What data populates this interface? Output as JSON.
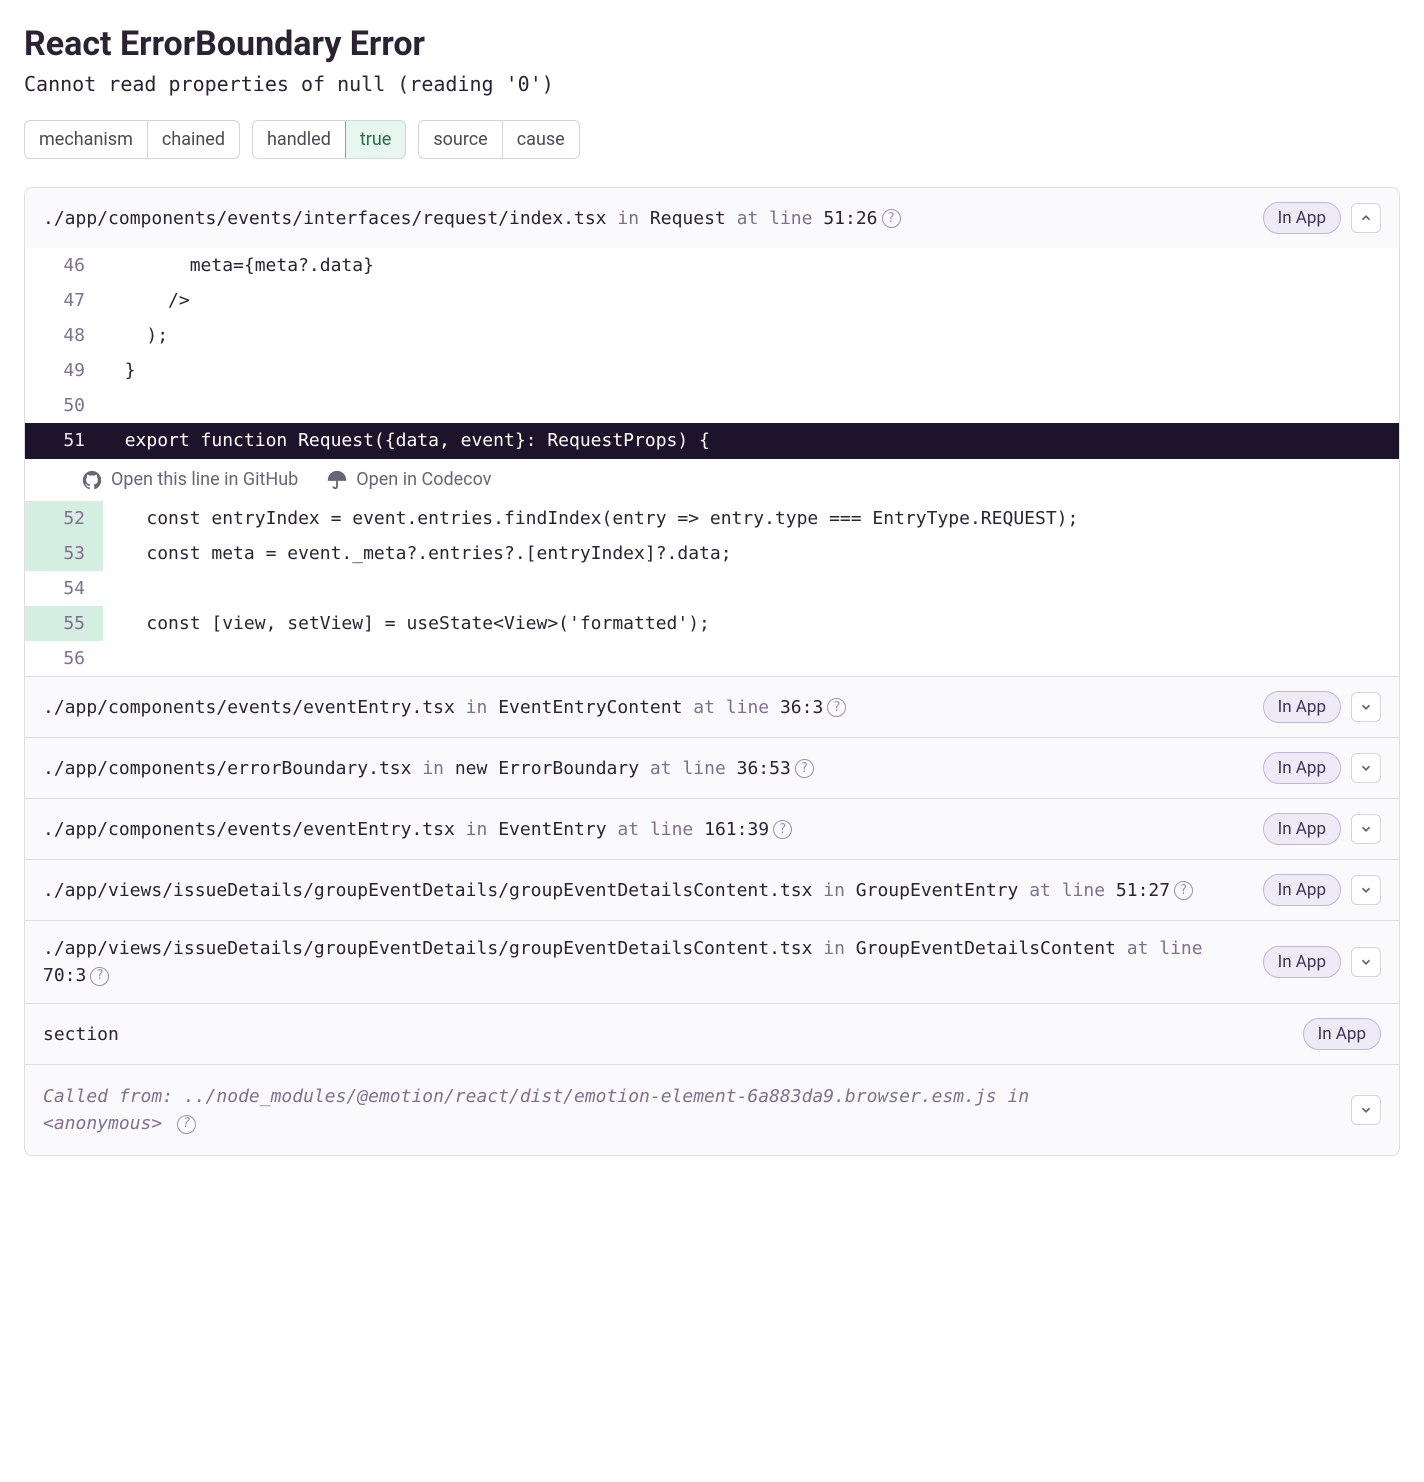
{
  "error": {
    "title": "React ErrorBoundary Error",
    "subtitle": "Cannot read properties of null (reading '0')"
  },
  "tags": [
    {
      "key": "mechanism",
      "value": "chained",
      "highlight": false
    },
    {
      "key": "handled",
      "value": "true",
      "highlight": true
    },
    {
      "key": "source",
      "value": "cause",
      "highlight": false
    }
  ],
  "colors": {
    "badge_bg": "#eeebf7",
    "badge_border": "#c2b6e0",
    "true_bg": "#e7f7f0",
    "true_border": "#57be8c",
    "active_line_bg": "#1d142b",
    "context_line_bg": "#d4eee2",
    "border": "#e0dce5",
    "dim_text": "#80708f"
  },
  "links": {
    "github": "Open this line in GitHub",
    "codecov": "Open in Codecov"
  },
  "inapp_label": "In App",
  "frames": [
    {
      "path": "./app/components/events/interfaces/request/index.tsx",
      "in": "in",
      "fn": "Request",
      "at": "at line",
      "loc": "51:26",
      "in_app": true,
      "expanded": true,
      "code": [
        {
          "n": "46",
          "t": "        meta={meta?.data}"
        },
        {
          "n": "47",
          "t": "      />"
        },
        {
          "n": "48",
          "t": "    );"
        },
        {
          "n": "49",
          "t": "  }"
        },
        {
          "n": "50",
          "t": ""
        },
        {
          "n": "51",
          "t": "  export function Request({data, event}: RequestProps) {",
          "active": true
        },
        {
          "n": "52",
          "t": "    const entryIndex = event.entries.findIndex(entry => entry.type === EntryType.REQUEST);",
          "context": true
        },
        {
          "n": "53",
          "t": "    const meta = event._meta?.entries?.[entryIndex]?.data;",
          "context": true
        },
        {
          "n": "54",
          "t": ""
        },
        {
          "n": "55",
          "t": "    const [view, setView] = useState<View>('formatted');",
          "context": true
        },
        {
          "n": "56",
          "t": ""
        }
      ]
    },
    {
      "path": "./app/components/events/eventEntry.tsx",
      "in": "in",
      "fn": "EventEntryContent",
      "at": "at line",
      "loc": "36:3",
      "in_app": true,
      "expanded": false
    },
    {
      "path": "./app/components/errorBoundary.tsx",
      "in": "in",
      "fn": "new ErrorBoundary",
      "at": "at line",
      "loc": "36:53",
      "in_app": true,
      "expanded": false
    },
    {
      "path": "./app/components/events/eventEntry.tsx",
      "in": "in",
      "fn": "EventEntry",
      "at": "at line",
      "loc": "161:39",
      "in_app": true,
      "expanded": false
    },
    {
      "path": "./app/views/issueDetails/groupEventDetails/groupEventDetailsContent.tsx",
      "in": "in",
      "fn": "GroupEventEntry",
      "at": "at line",
      "loc": "51:27",
      "in_app": true,
      "expanded": false
    },
    {
      "path": "./app/views/issueDetails/groupEventDetails/groupEventDetailsContent.tsx",
      "in": "in",
      "fn": "GroupEventDetailsContent",
      "at": "at line",
      "loc": "70:3",
      "in_app": true,
      "expanded": false
    },
    {
      "path": "section",
      "in_app": true,
      "no_toggle": true
    }
  ],
  "called_from": {
    "prefix": "Called from: ",
    "path": "../node_modules/@emotion/react/dist/emotion-element-6a883da9.browser.esm.js",
    "in": " in ",
    "fn": "<anonymous>"
  }
}
